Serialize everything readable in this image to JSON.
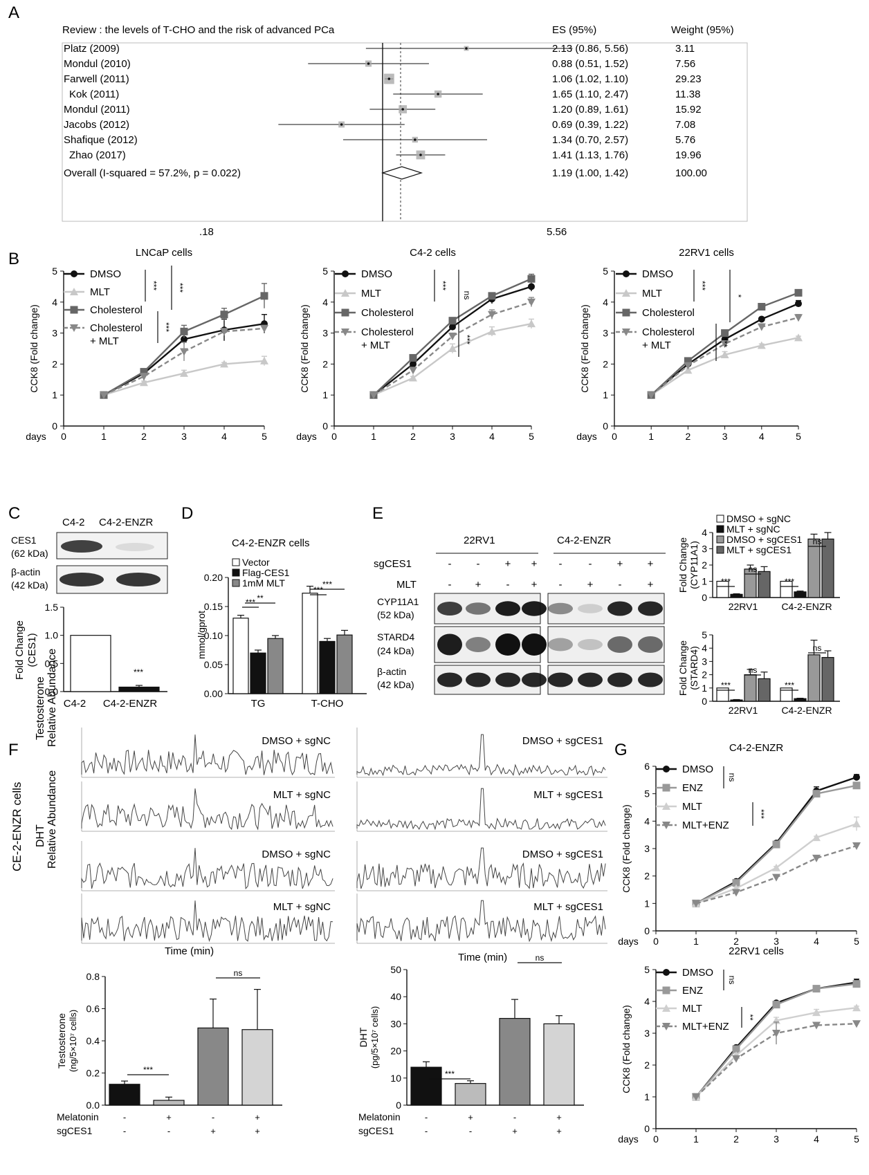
{
  "panel_labels": {
    "A": "A",
    "B": "B",
    "C": "C",
    "D": "D",
    "E": "E",
    "F": "F",
    "G": "G"
  },
  "forest": {
    "title": "Review : the levels of T-CHO  and the risk of advanced PCa",
    "es_header": "ES (95%)",
    "weight_header": "Weight (95%)",
    "studies": [
      {
        "name": "Platz (2009)",
        "es": 2.13,
        "lo": 0.86,
        "hi": 5.56,
        "es_text": "2.13 (0.86, 5.56)",
        "weight": "3.11"
      },
      {
        "name": "Mondul (2010)",
        "es": 0.88,
        "lo": 0.51,
        "hi": 1.52,
        "es_text": "0.88 (0.51, 1.52)",
        "weight": "7.56"
      },
      {
        "name": "Farwell (2011)",
        "es": 1.06,
        "lo": 1.02,
        "hi": 1.1,
        "es_text": "1.06 (1.02, 1.10)",
        "weight": "29.23"
      },
      {
        "name": "Kok (2011)",
        "es": 1.65,
        "lo": 1.1,
        "hi": 2.47,
        "es_text": "1.65 (1.10, 2.47)",
        "weight": "11.38"
      },
      {
        "name": "Mondul (2011)",
        "es": 1.2,
        "lo": 0.89,
        "hi": 1.61,
        "es_text": "1.20 (0.89, 1.61)",
        "weight": "15.92"
      },
      {
        "name": "Jacobs (2012)",
        "es": 0.69,
        "lo": 0.39,
        "hi": 1.22,
        "es_text": "0.69 (0.39, 1.22)",
        "weight": "7.08"
      },
      {
        "name": "Shafique (2012)",
        "es": 1.34,
        "lo": 0.7,
        "hi": 2.57,
        "es_text": "1.34 (0.70, 2.57)",
        "weight": "5.76"
      },
      {
        "name": "Zhao (2017)",
        "es": 1.41,
        "lo": 1.13,
        "hi": 1.76,
        "es_text": "1.41 (1.13, 1.76)",
        "weight": "19.96"
      }
    ],
    "overall": {
      "label": "Overall (I-squared  =  57.2%, p =  0.022)",
      "es": 1.19,
      "lo": 1.0,
      "hi": 1.42,
      "es_text": "1.19 (1.00, 1.42)",
      "weight": "100.00"
    },
    "x_ticks": [
      ".18",
      "5.56"
    ]
  },
  "common": {
    "ylabel": "CCK8 (Fold change)",
    "days": "days",
    "ns": "ns",
    "sig3": "***",
    "sig2": "**",
    "sig1": "*"
  },
  "chart_data": [
    {
      "id": "B1",
      "type": "line",
      "title": "LNCaP cells",
      "ylabel": "CCK8 (Fold change)",
      "xlabel": "days",
      "x": [
        1,
        2,
        3,
        4,
        5
      ],
      "ylim": [
        0,
        5
      ],
      "xlim": [
        0,
        5
      ],
      "series": [
        {
          "name": "DMSO",
          "values": [
            1,
            1.7,
            2.8,
            3.1,
            3.3
          ],
          "err": [
            0.03,
            0.1,
            0.15,
            0.35,
            0.3
          ],
          "color": "#111111",
          "marker": "circle",
          "dash": false
        },
        {
          "name": "MLT",
          "values": [
            1,
            1.4,
            1.7,
            2.0,
            2.1
          ],
          "err": [
            0.03,
            0.05,
            0.1,
            0.05,
            0.15
          ],
          "color": "#c8c8c8",
          "marker": "triangle-up",
          "dash": false
        },
        {
          "name": "Cholesterol",
          "values": [
            1,
            1.75,
            3.05,
            3.6,
            4.2
          ],
          "err": [
            0.03,
            0.1,
            0.2,
            0.2,
            0.4
          ],
          "color": "#666666",
          "marker": "square",
          "dash": false
        },
        {
          "name": "Cholesterol + MLT",
          "values": [
            1,
            1.6,
            2.4,
            3.05,
            3.15
          ],
          "err": [
            0.03,
            0.1,
            0.3,
            0.1,
            0.1
          ],
          "color": "#888888",
          "marker": "triangle-down",
          "dash": true
        }
      ]
    },
    {
      "id": "B2",
      "type": "line",
      "title": "C4-2 cells",
      "ylabel": "CCK8 (Fold change)",
      "xlabel": "days",
      "x": [
        1,
        2,
        3,
        4,
        5
      ],
      "ylim": [
        0,
        5
      ],
      "xlim": [
        0,
        5
      ],
      "series": [
        {
          "name": "DMSO",
          "values": [
            1,
            2.0,
            3.2,
            4.1,
            4.5
          ],
          "err": [
            0.03,
            0.05,
            0.1,
            0.15,
            0.15
          ],
          "color": "#111111",
          "marker": "circle",
          "dash": false
        },
        {
          "name": "MLT",
          "values": [
            1,
            1.55,
            2.5,
            3.05,
            3.3
          ],
          "err": [
            0.03,
            0.05,
            0.15,
            0.15,
            0.15
          ],
          "color": "#c8c8c8",
          "marker": "triangle-up",
          "dash": false
        },
        {
          "name": "Cholesterol",
          "values": [
            1,
            2.2,
            3.4,
            4.2,
            4.75
          ],
          "err": [
            0.03,
            0.05,
            0.1,
            0.1,
            0.15
          ],
          "color": "#666666",
          "marker": "square",
          "dash": false
        },
        {
          "name": "Cholesterol + MLT",
          "values": [
            1,
            1.8,
            2.9,
            3.6,
            4.0
          ],
          "err": [
            0.03,
            0.05,
            0.1,
            0.15,
            0.15
          ],
          "color": "#888888",
          "marker": "triangle-down",
          "dash": true
        }
      ]
    },
    {
      "id": "B3",
      "type": "line",
      "title": "22RV1 cells",
      "ylabel": "CCK8 (Fold change)",
      "xlabel": "days",
      "x": [
        1,
        2,
        3,
        4,
        5
      ],
      "ylim": [
        0,
        5
      ],
      "xlim": [
        0,
        5
      ],
      "series": [
        {
          "name": "DMSO",
          "values": [
            1,
            2.0,
            2.8,
            3.45,
            3.95
          ],
          "err": [
            0.03,
            0.05,
            0.1,
            0.05,
            0.1
          ],
          "color": "#111111",
          "marker": "circle",
          "dash": false
        },
        {
          "name": "MLT",
          "values": [
            1,
            1.8,
            2.3,
            2.6,
            2.85
          ],
          "err": [
            0.03,
            0.05,
            0.1,
            0.05,
            0.05
          ],
          "color": "#c8c8c8",
          "marker": "triangle-up",
          "dash": false
        },
        {
          "name": "Cholesterol",
          "values": [
            1,
            2.1,
            3.0,
            3.85,
            4.3
          ],
          "err": [
            0.03,
            0.05,
            0.1,
            0.05,
            0.1
          ],
          "color": "#666666",
          "marker": "square",
          "dash": false
        },
        {
          "name": "Cholesterol + MLT",
          "values": [
            1,
            1.95,
            2.65,
            3.2,
            3.5
          ],
          "err": [
            0.03,
            0.05,
            0.1,
            0.1,
            0.1
          ],
          "color": "#888888",
          "marker": "triangle-down",
          "dash": true
        }
      ]
    },
    {
      "id": "G1",
      "type": "line",
      "title": "C4-2-ENZR",
      "ylabel": "CCK8 (Fold change)",
      "xlabel": "days",
      "x": [
        1,
        2,
        3,
        4,
        5
      ],
      "ylim": [
        0,
        6
      ],
      "xlim": [
        0,
        5
      ],
      "series": [
        {
          "name": "DMSO",
          "values": [
            1,
            1.8,
            3.2,
            5.1,
            5.6
          ],
          "err": [
            0.03,
            0.05,
            0.05,
            0.15,
            0.1
          ],
          "color": "#111111",
          "marker": "circle",
          "dash": false
        },
        {
          "name": "ENZ",
          "values": [
            1,
            1.75,
            3.15,
            5.0,
            5.3
          ],
          "err": [
            0.03,
            0.05,
            0.05,
            0.1,
            0.1
          ],
          "color": "#999999",
          "marker": "square",
          "dash": false
        },
        {
          "name": "MLT",
          "values": [
            1,
            1.55,
            2.3,
            3.4,
            3.9
          ],
          "err": [
            0.03,
            0.05,
            0.05,
            0.05,
            0.25
          ],
          "color": "#cfcfcf",
          "marker": "triangle-up",
          "dash": false
        },
        {
          "name": "MLT+ENZ",
          "values": [
            1,
            1.4,
            1.95,
            2.65,
            3.1
          ],
          "err": [
            0.03,
            0.05,
            0.05,
            0.05,
            0.05
          ],
          "color": "#888888",
          "marker": "triangle-down",
          "dash": true
        }
      ]
    },
    {
      "id": "G2",
      "type": "line",
      "title": "22RV1 cells",
      "ylabel": "CCK8 (Fold change)",
      "xlabel": "days",
      "x": [
        1,
        2,
        3,
        4,
        5
      ],
      "ylim": [
        0,
        5
      ],
      "xlim": [
        0,
        5
      ],
      "series": [
        {
          "name": "DMSO",
          "values": [
            1,
            2.55,
            3.95,
            4.4,
            4.6
          ],
          "err": [
            0.03,
            0.05,
            0.05,
            0.05,
            0.1
          ],
          "color": "#111111",
          "marker": "circle",
          "dash": false
        },
        {
          "name": "ENZ",
          "values": [
            1,
            2.5,
            3.9,
            4.4,
            4.55
          ],
          "err": [
            0.03,
            0.05,
            0.05,
            0.05,
            0.1
          ],
          "color": "#999999",
          "marker": "square",
          "dash": false
        },
        {
          "name": "MLT",
          "values": [
            1,
            2.3,
            3.4,
            3.65,
            3.8
          ],
          "err": [
            0.03,
            0.05,
            0.1,
            0.1,
            0.05
          ],
          "color": "#cfcfcf",
          "marker": "triangle-up",
          "dash": false
        },
        {
          "name": "MLT+ENZ",
          "values": [
            1,
            2.2,
            3.0,
            3.25,
            3.3
          ],
          "err": [
            0.03,
            0.05,
            0.35,
            0.05,
            0.05
          ],
          "color": "#888888",
          "marker": "triangle-down",
          "dash": true
        }
      ]
    },
    {
      "id": "C",
      "type": "bar",
      "ylabel": "Fold Change (CES1)",
      "categories": [
        "C4-2",
        "C4-2-ENZR"
      ],
      "values": [
        1.0,
        0.08
      ],
      "err": [
        0,
        0.03
      ],
      "ylim": [
        0,
        1.5
      ],
      "colors": [
        "#ffffff",
        "#111111"
      ]
    },
    {
      "id": "D",
      "type": "bar",
      "title": "C4-2-ENZR cells",
      "ylabel": "mmol/gprot",
      "categories": [
        "TG",
        "T-CHO"
      ],
      "ylim": [
        0,
        0.2
      ],
      "series": [
        {
          "name": "Vector",
          "values": [
            0.13,
            0.173
          ],
          "err": [
            0.005,
            0.012
          ],
          "color": "#ffffff"
        },
        {
          "name": "Flag-CES1",
          "values": [
            0.07,
            0.09
          ],
          "err": [
            0.005,
            0.005
          ],
          "color": "#111111"
        },
        {
          "name": "1mM  MLT",
          "values": [
            0.095,
            0.101
          ],
          "err": [
            0.005,
            0.008
          ],
          "color": "#888888"
        }
      ]
    },
    {
      "id": "E1",
      "type": "bar",
      "ylabel": "Fold Change (CYP11A1)",
      "categories": [
        "22RV1",
        "C4-2-ENZR"
      ],
      "ylim": [
        0,
        4
      ],
      "series": [
        {
          "name": "DMSO  + sgNC",
          "values": [
            1.0,
            1.0
          ],
          "err": [
            0,
            0
          ],
          "color": "#ffffff"
        },
        {
          "name": "MLT + sgNC",
          "values": [
            0.2,
            0.35
          ],
          "err": [
            0.03,
            0.05
          ],
          "color": "#111111"
        },
        {
          "name": "DMSO  + sgCES1",
          "values": [
            1.75,
            3.6
          ],
          "err": [
            0.25,
            0.3
          ],
          "color": "#999999"
        },
        {
          "name": "MLT + sgCES1",
          "values": [
            1.6,
            3.6
          ],
          "err": [
            0.3,
            0.4
          ],
          "color": "#666666"
        }
      ]
    },
    {
      "id": "E2",
      "type": "bar",
      "ylabel": "Fold Change (STARD4)",
      "categories": [
        "22RV1",
        "C4-2-ENZR"
      ],
      "ylim": [
        0,
        5
      ],
      "series": [
        {
          "name": "DMSO  + sgNC",
          "values": [
            1.0,
            1.0
          ],
          "err": [
            0,
            0
          ],
          "color": "#ffffff"
        },
        {
          "name": "MLT + sgNC",
          "values": [
            0.1,
            0.2
          ],
          "err": [
            0.03,
            0.03
          ],
          "color": "#111111"
        },
        {
          "name": "DMSO  + sgCES1",
          "values": [
            2.0,
            3.5
          ],
          "err": [
            0.4,
            1.1
          ],
          "color": "#999999"
        },
        {
          "name": "MLT + sgCES1",
          "values": [
            1.7,
            3.3
          ],
          "err": [
            0.5,
            0.5
          ],
          "color": "#666666"
        }
      ]
    },
    {
      "id": "F1",
      "type": "bar",
      "ylabel": "Testosterone",
      "ylabel2": "(ng/5×10⁷ cells)",
      "values": [
        0.13,
        0.03,
        0.48,
        0.47
      ],
      "err": [
        0.02,
        0.02,
        0.18,
        0.25
      ],
      "ylim": [
        0,
        0.8
      ],
      "colors": [
        "#111111",
        "#bbbbbb",
        "#888888",
        "#d4d4d4"
      ]
    },
    {
      "id": "F2",
      "type": "bar",
      "ylabel": "DHT",
      "ylabel2": "(pg/5×10⁷ cells)",
      "values": [
        14,
        8,
        32,
        30
      ],
      "err": [
        2,
        1,
        7,
        3
      ],
      "ylim": [
        0,
        50
      ],
      "colors": [
        "#111111",
        "#bbbbbb",
        "#888888",
        "#d4d4d4"
      ]
    }
  ],
  "panelC": {
    "lanes": [
      "C4-2",
      "C4-2-ENZR"
    ],
    "bands": [
      {
        "label1": "CES1",
        "label2": "(62 kDa)"
      },
      {
        "label1": "β-actin",
        "label2": "(42 kDa)"
      }
    ]
  },
  "panelE": {
    "groups": [
      "22RV1",
      "C4-2-ENZR"
    ],
    "row_labels": [
      "sgCES1",
      "MLT"
    ],
    "sg": [
      "-",
      "-",
      "+",
      "+"
    ],
    "mlt": [
      "-",
      "+",
      "-",
      "+"
    ],
    "bands": [
      {
        "label1": "CYP11A1",
        "label2": "(52 kDa)"
      },
      {
        "label1": "STARD4",
        "label2": "(24 kDa)"
      },
      {
        "label1": "β-actin",
        "label2": "(42 kDa)"
      }
    ]
  },
  "panelF": {
    "side_label": "CE-2-ENZR cells",
    "row_labels": [
      {
        "l1": "Testosterone",
        "l2": "Relative  Abundance"
      },
      {
        "l1": "DHT",
        "l2": "Relative  Abundance"
      }
    ],
    "traces": [
      "DMSO  + sgNC",
      "DMSO  + sgCES1",
      "MLT + sgNC",
      "MLT + sgCES1",
      "DMSO  + sgNC",
      "DMSO  + sgCES1",
      "MLT + sgNC",
      "MLT + sgCES1"
    ],
    "time_label": "Time  (min)",
    "conditions": {
      "melatonin": "Melatonin",
      "sgces1": "sgCES1",
      "mel_signs": [
        "-",
        "+",
        "-",
        "+"
      ],
      "sg_signs": [
        "-",
        "-",
        "+",
        "+"
      ]
    }
  }
}
